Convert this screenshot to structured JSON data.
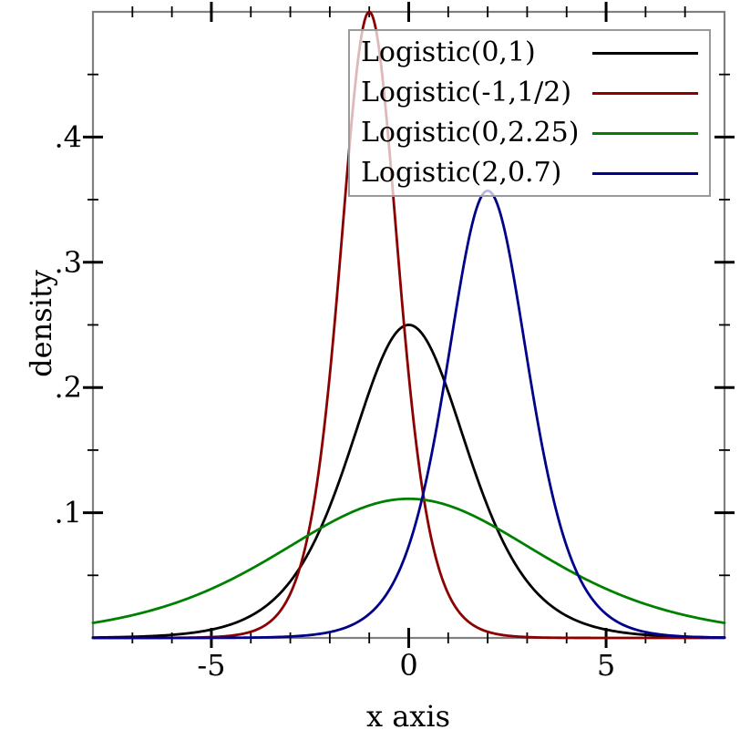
{
  "figure": {
    "background": "#ffffff",
    "frame_color": "#808080",
    "tick_color": "#000000",
    "legend_border_color": "#9a9a9a"
  },
  "chart_data": {
    "type": "line",
    "title": "",
    "xlabel": "x axis",
    "ylabel": "density",
    "xlim": [
      -8,
      8
    ],
    "ylim": [
      0,
      0.5
    ],
    "grid": false,
    "x_major_ticks": [
      {
        "value": -5,
        "label": "-5"
      },
      {
        "value": 0,
        "label": "0"
      },
      {
        "value": 5,
        "label": "5"
      }
    ],
    "x_minor_ticks": [
      -7,
      -6,
      -4,
      -3,
      -2,
      -1,
      1,
      2,
      3,
      4,
      6,
      7
    ],
    "y_major_ticks": [
      {
        "value": 0.1,
        "label": ".1"
      },
      {
        "value": 0.2,
        "label": ".2"
      },
      {
        "value": 0.3,
        "label": ".3"
      },
      {
        "value": 0.4,
        "label": ".4"
      }
    ],
    "y_minor_ticks": [
      0.05,
      0.15,
      0.25,
      0.35,
      0.45
    ],
    "legend": {
      "position": "top-right"
    },
    "series": [
      {
        "name": "Logistic(0,1)",
        "color": "#000000",
        "distribution": "logistic",
        "location": 0,
        "scale": 1,
        "peak_density": 0.25
      },
      {
        "name": "Logistic(-1,1/2)",
        "color": "#8b0000",
        "distribution": "logistic",
        "location": -1,
        "scale": 0.5,
        "peak_density": 0.5
      },
      {
        "name": "Logistic(0,2.25)",
        "color": "#008000",
        "distribution": "logistic",
        "location": 0,
        "scale": 2.25,
        "peak_density": 0.111
      },
      {
        "name": "Logistic(2,0.7)",
        "color": "#00008b",
        "distribution": "logistic",
        "location": 2,
        "scale": 0.7,
        "peak_density": 0.357
      }
    ]
  }
}
